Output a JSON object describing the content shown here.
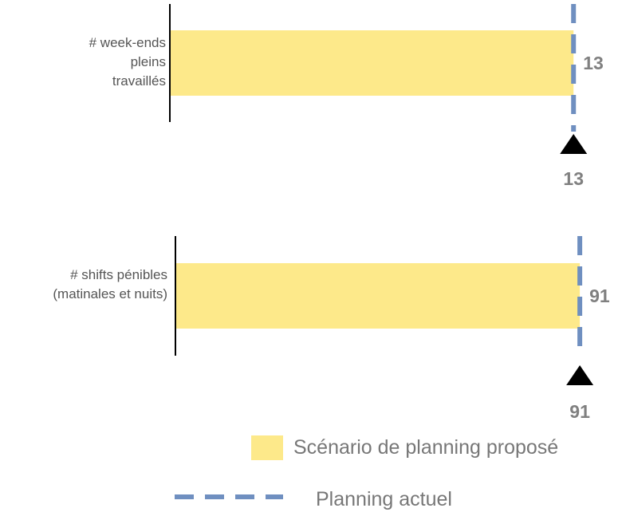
{
  "chart_data": [
    {
      "type": "bar",
      "orientation": "horizontal",
      "categories": [
        "# week-ends pleins travaillés"
      ],
      "category_lines": [
        "# week-ends",
        "pleins",
        "travaillés"
      ],
      "series": [
        {
          "name": "Scénario de planning proposé",
          "values": [
            13
          ],
          "value_labels": [
            "13"
          ]
        }
      ],
      "reference": {
        "name": "Planning actuel",
        "value": 13,
        "label": "13"
      },
      "xlim": [
        0,
        13.2
      ]
    },
    {
      "type": "bar",
      "orientation": "horizontal",
      "categories": [
        "# shifts pénibles (matinales et nuits)"
      ],
      "category_lines": [
        "# shifts pénibles",
        "(matinales et nuits)"
      ],
      "series": [
        {
          "name": "Scénario de planning proposé",
          "values": [
            91
          ],
          "value_labels": [
            "91"
          ]
        }
      ],
      "reference": {
        "name": "Planning actuel",
        "value": 91,
        "label": "91"
      },
      "xlim": [
        0,
        91.7
      ]
    }
  ],
  "legend": {
    "placement": "bottom-right",
    "items": [
      {
        "label": "Scénario de planning proposé",
        "kind": "bar"
      },
      {
        "label": "Planning actuel",
        "kind": "dashed-line"
      }
    ]
  },
  "colors": {
    "bar": "#fde98a",
    "reference_line": "#6f8fc0",
    "axis": "#000000",
    "label_text": "#555555",
    "value_text": "#808080",
    "legend_text": "#777777",
    "marker": "#000000"
  }
}
